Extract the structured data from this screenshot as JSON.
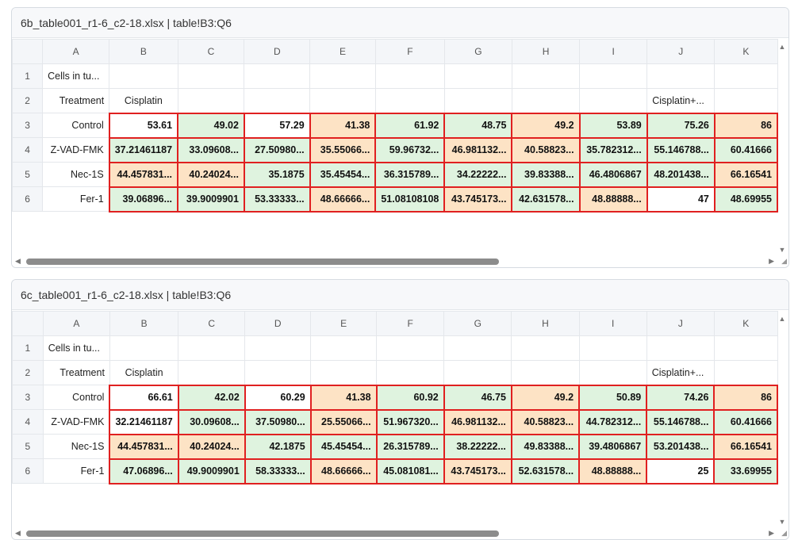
{
  "columns": [
    "",
    "A",
    "B",
    "C",
    "D",
    "E",
    "F",
    "G",
    "H",
    "I",
    "J",
    "K"
  ],
  "panels": [
    {
      "title": "6b_table001_r1-6_c2-18.xlsx | table!B3:Q6",
      "rows": [
        {
          "num": "1",
          "label": "Cells in tu...",
          "cells": []
        },
        {
          "num": "2",
          "label": "Treatment",
          "cells": [],
          "b_text": "Cisplatin",
          "j_text": "Cisplatin+..."
        },
        {
          "num": "3",
          "label": "Control",
          "cells": [
            "53.61",
            "49.02",
            "57.29",
            "41.38",
            "61.92",
            "48.75",
            "49.2",
            "53.89",
            "75.26",
            "86"
          ]
        },
        {
          "num": "4",
          "label": "Z-VAD-FMK",
          "cells": [
            "37.21461187",
            "33.09608...",
            "27.50980...",
            "35.55066...",
            "59.96732...",
            "46.981132...",
            "40.58823...",
            "35.782312...",
            "55.146788...",
            "60.41666"
          ]
        },
        {
          "num": "5",
          "label": "Nec-1S",
          "cells": [
            "44.457831...",
            "40.24024...",
            "35.1875",
            "35.45454...",
            "36.315789...",
            "34.22222...",
            "39.83388...",
            "46.4806867",
            "48.201438...",
            "66.16541"
          ]
        },
        {
          "num": "6",
          "label": "Fer-1",
          "cells": [
            "39.06896...",
            "39.9009901",
            "53.33333...",
            "48.66666...",
            "51.08108108",
            "43.745173...",
            "42.631578...",
            "48.88888...",
            "47",
            "48.69955"
          ]
        }
      ]
    },
    {
      "title": "6c_table001_r1-6_c2-18.xlsx | table!B3:Q6",
      "rows": [
        {
          "num": "1",
          "label": "Cells in tu...",
          "cells": []
        },
        {
          "num": "2",
          "label": "Treatment",
          "cells": [],
          "b_text": "Cisplatin",
          "j_text": "Cisplatin+..."
        },
        {
          "num": "3",
          "label": "Control",
          "cells": [
            "66.61",
            "42.02",
            "60.29",
            "41.38",
            "60.92",
            "46.75",
            "49.2",
            "50.89",
            "74.26",
            "86"
          ]
        },
        {
          "num": "4",
          "label": "Z-VAD-FMK",
          "cells": [
            "32.21461187",
            "30.09608...",
            "37.50980...",
            "25.55066...",
            "51.967320...",
            "46.981132...",
            "40.58823...",
            "44.782312...",
            "55.146788...",
            "60.41666"
          ]
        },
        {
          "num": "5",
          "label": "Nec-1S",
          "cells": [
            "44.457831...",
            "40.24024...",
            "42.1875",
            "45.45454...",
            "26.315789...",
            "38.22222...",
            "49.83388...",
            "39.4806867",
            "53.201438...",
            "66.16541"
          ]
        },
        {
          "num": "6",
          "label": "Fer-1",
          "cells": [
            "47.06896...",
            "49.9009901",
            "58.33333...",
            "48.66666...",
            "45.081081...",
            "43.745173...",
            "52.631578...",
            "48.88888...",
            "25",
            "33.69955"
          ]
        }
      ]
    }
  ],
  "colors": {
    "green": "#dff3df",
    "orange": "#fde3c5",
    "highlight_border": "#e02020"
  }
}
